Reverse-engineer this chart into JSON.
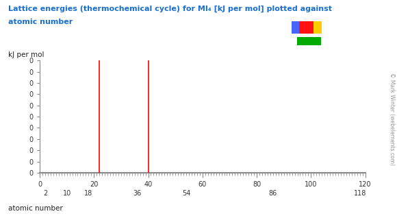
{
  "title_line1": "Lattice energies (thermochemical cycle) for MI<sub>4</sub> [kJ per mol] plotted against",
  "title_line2": "atomic number",
  "ylabel": "kJ per mol",
  "xlabel": "atomic number",
  "xlim": [
    0,
    120
  ],
  "ylim_data": [
    -1.0,
    1.0
  ],
  "n_yticks": 11,
  "xticks_major": [
    0,
    20,
    40,
    60,
    80,
    100,
    120
  ],
  "xticks_bottom": [
    2,
    10,
    18,
    36,
    54,
    86,
    118
  ],
  "red_lines": [
    22,
    40
  ],
  "title_color": "#1a6fcc",
  "ylabel_color": "#222222",
  "background_color": "#ffffff",
  "watermark": "© Mark Winter (webelements.com)",
  "icon": {
    "blue": [
      0.735,
      0.845,
      0.018,
      0.055
    ],
    "red": [
      0.753,
      0.845,
      0.037,
      0.055
    ],
    "yellow": [
      0.79,
      0.845,
      0.02,
      0.055
    ],
    "green": [
      0.748,
      0.79,
      0.06,
      0.038
    ]
  }
}
